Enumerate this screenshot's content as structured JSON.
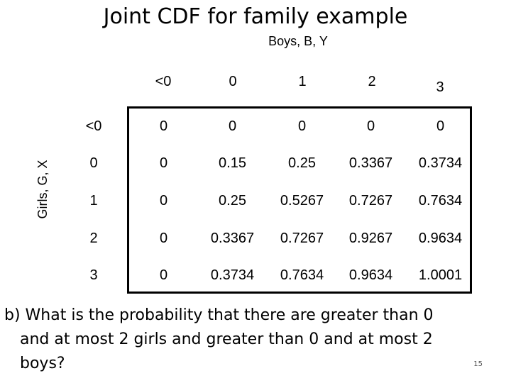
{
  "slide": {
    "title": "Joint CDF for family example",
    "column_variable_label": "Boys, B, Y",
    "row_variable_label": "Girls, G, X",
    "page_number": "15"
  },
  "table": {
    "column_headers": [
      "<0",
      "0",
      "1",
      "2",
      "3"
    ],
    "rows": [
      {
        "label": "<0",
        "values": [
          "0",
          "0",
          "0",
          "0",
          "0"
        ]
      },
      {
        "label": "0",
        "values": [
          "0",
          "0.15",
          "0.25",
          "0.3367",
          "0.3734"
        ]
      },
      {
        "label": "1",
        "values": [
          "0",
          "0.25",
          "0.5267",
          "0.7267",
          "0.7634"
        ]
      },
      {
        "label": "2",
        "values": [
          "0",
          "0.3367",
          "0.7267",
          "0.9267",
          "0.9634"
        ]
      },
      {
        "label": "3",
        "values": [
          "0",
          "0.3734",
          "0.7634",
          "0.9634",
          "1.0001"
        ]
      }
    ]
  },
  "question": {
    "lines": [
      "b) What is the probability that there are greater than 0",
      "and at most 2 girls and greater than 0 and at most 2",
      "boys?"
    ]
  }
}
